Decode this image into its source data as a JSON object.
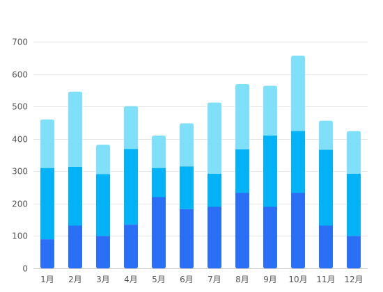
{
  "chart_data": {
    "type": "bar",
    "stacked": true,
    "categories": [
      "1月",
      "2月",
      "3月",
      "4月",
      "5月",
      "6月",
      "7月",
      "8月",
      "9月",
      "10月",
      "11月",
      "12月"
    ],
    "series": [
      {
        "color": "#2a6ff5",
        "values": [
          90,
          132,
          100,
          135,
          220,
          183,
          190,
          233,
          190,
          233,
          132,
          100
        ]
      },
      {
        "color": "#04b2f6",
        "values": [
          220,
          182,
          191,
          234,
          90,
          132,
          102,
          135,
          220,
          191,
          234,
          192
        ]
      },
      {
        "color": "#80e0fa",
        "values": [
          150,
          232,
          91,
          132,
          100,
          133,
          220,
          201,
          154,
          233,
          90,
          132
        ]
      }
    ],
    "yticks": [
      0,
      100,
      200,
      300,
      400,
      500,
      600,
      700
    ],
    "ylim": [
      0,
      700
    ],
    "grid": true,
    "legend": "none",
    "title": "",
    "xlabel": "",
    "ylabel": ""
  }
}
